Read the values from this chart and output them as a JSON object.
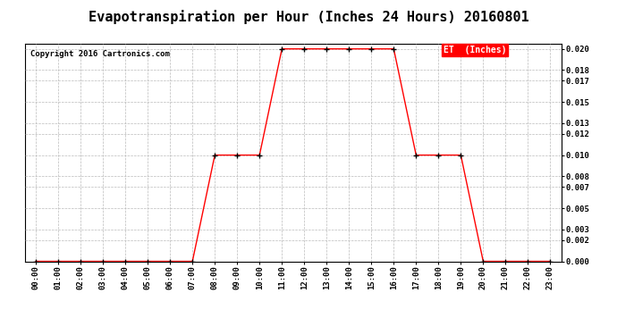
{
  "title": "Evapotranspiration per Hour (Inches 24 Hours) 20160801",
  "copyright_text": "Copyright 2016 Cartronics.com",
  "legend_label": "ET  (Inches)",
  "legend_bg": "#ff0000",
  "legend_text_color": "#ffffff",
  "hours": [
    "00:00",
    "01:00",
    "02:00",
    "03:00",
    "04:00",
    "05:00",
    "06:00",
    "07:00",
    "08:00",
    "09:00",
    "10:00",
    "11:00",
    "12:00",
    "13:00",
    "14:00",
    "15:00",
    "16:00",
    "17:00",
    "18:00",
    "19:00",
    "20:00",
    "21:00",
    "22:00",
    "23:00"
  ],
  "values": [
    0.0,
    0.0,
    0.0,
    0.0,
    0.0,
    0.0,
    0.0,
    0.0,
    0.01,
    0.01,
    0.01,
    0.02,
    0.02,
    0.02,
    0.02,
    0.02,
    0.02,
    0.01,
    0.01,
    0.01,
    0.0,
    0.0,
    0.0,
    0.0
  ],
  "line_color": "#ff0000",
  "marker_color": "#000000",
  "grid_color": "#bbbbbb",
  "bg_color": "#ffffff",
  "ylim": [
    0.0,
    0.0205
  ],
  "yticks": [
    0.0,
    0.002,
    0.003,
    0.005,
    0.007,
    0.008,
    0.01,
    0.012,
    0.013,
    0.015,
    0.017,
    0.018,
    0.02
  ],
  "title_fontsize": 11,
  "tick_fontsize": 6.5,
  "copyright_fontsize": 6.5,
  "legend_fontsize": 7
}
